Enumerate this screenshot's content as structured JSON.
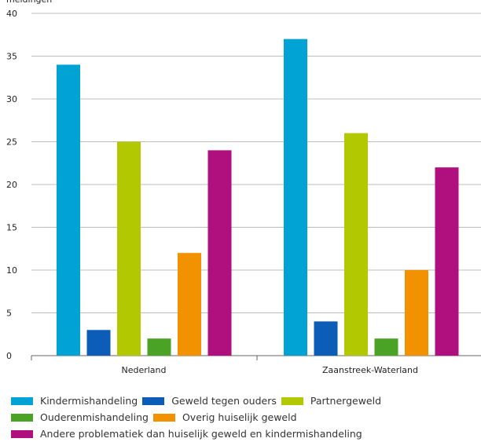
{
  "chart_data": {
    "type": "bar",
    "title": "",
    "ylabel": "meldingen",
    "xlabel": "",
    "ylim": [
      0,
      40
    ],
    "yticks": [
      0,
      5,
      10,
      15,
      20,
      25,
      30,
      35,
      40
    ],
    "grid": true,
    "legend_position": "bottom",
    "categories": [
      "Nederland",
      "Zaanstreek-Waterland"
    ],
    "series": [
      {
        "name": "Kindermishandeling",
        "color": "#00a3d4",
        "values": [
          34,
          37
        ]
      },
      {
        "name": "Geweld tegen ouders",
        "color": "#0b5db8",
        "values": [
          3,
          4
        ]
      },
      {
        "name": "Partnergeweld",
        "color": "#b2c800",
        "values": [
          25,
          26
        ]
      },
      {
        "name": "Ouderenmishandeling",
        "color": "#4aa325",
        "values": [
          2,
          2
        ]
      },
      {
        "name": "Overig huiselijk geweld",
        "color": "#f39200",
        "values": [
          12,
          10
        ]
      },
      {
        "name": "Andere problematiek dan huiselijk geweld en kindermishandeling",
        "color": "#b0107e",
        "values": [
          24,
          22
        ]
      }
    ]
  },
  "legend_rows": [
    [
      0,
      1,
      2
    ],
    [
      3,
      4
    ],
    [
      5
    ]
  ]
}
